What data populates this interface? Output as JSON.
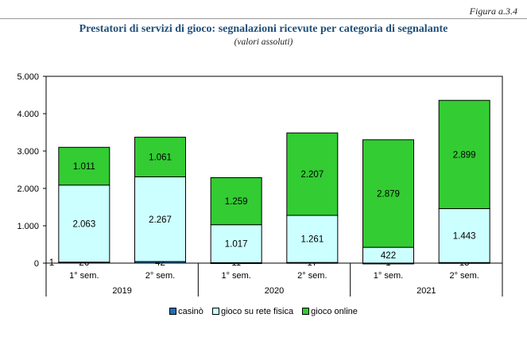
{
  "header": {
    "figure_label": "Figura a.3.4",
    "title": "Prestatori di servizi di gioco: segnalazioni ricevute per categoria di segnalante",
    "subtitle": "(valori assoluti)"
  },
  "colors": {
    "casino": "#1f6fb4",
    "rete_fisica": "#ccffff",
    "online": "#33cc33",
    "border": "#000000"
  },
  "chart_data": {
    "type": "bar",
    "stacked": true,
    "categories": [
      "1° sem.",
      "2° sem.",
      "1° sem.",
      "2° sem.",
      "1° sem.",
      "2° sem."
    ],
    "groups": [
      {
        "label": "2019",
        "categories": [
          0,
          1
        ]
      },
      {
        "label": "2020",
        "categories": [
          2,
          3
        ]
      },
      {
        "label": "2021",
        "categories": [
          4,
          5
        ]
      }
    ],
    "series": [
      {
        "name": "casinò",
        "values": [
          26,
          42,
          11,
          17,
          1,
          15
        ],
        "value_labels": [
          "26",
          "42",
          "11",
          "17",
          "1",
          "15"
        ]
      },
      {
        "name": "gioco su rete fisica",
        "values": [
          2063,
          2267,
          1017,
          1261,
          422,
          1443
        ],
        "value_labels": [
          "2.063",
          "2.267",
          "1.017",
          "1.261",
          "422",
          "1.443"
        ]
      },
      {
        "name": "gioco online",
        "values": [
          1011,
          1061,
          1259,
          2207,
          2879,
          2899
        ],
        "value_labels": [
          "1.011",
          "1.061",
          "1.259",
          "2.207",
          "2.879",
          "2.899"
        ]
      }
    ],
    "y_ticks": [
      0,
      1000,
      2000,
      3000,
      4000,
      5000
    ],
    "y_tick_labels": [
      "0",
      "1.000",
      "2.000",
      "3.000",
      "4.000",
      "5.000"
    ],
    "ylim": [
      0,
      5000
    ],
    "stray_label": "1",
    "grid": false,
    "legend_position": "bottom"
  }
}
